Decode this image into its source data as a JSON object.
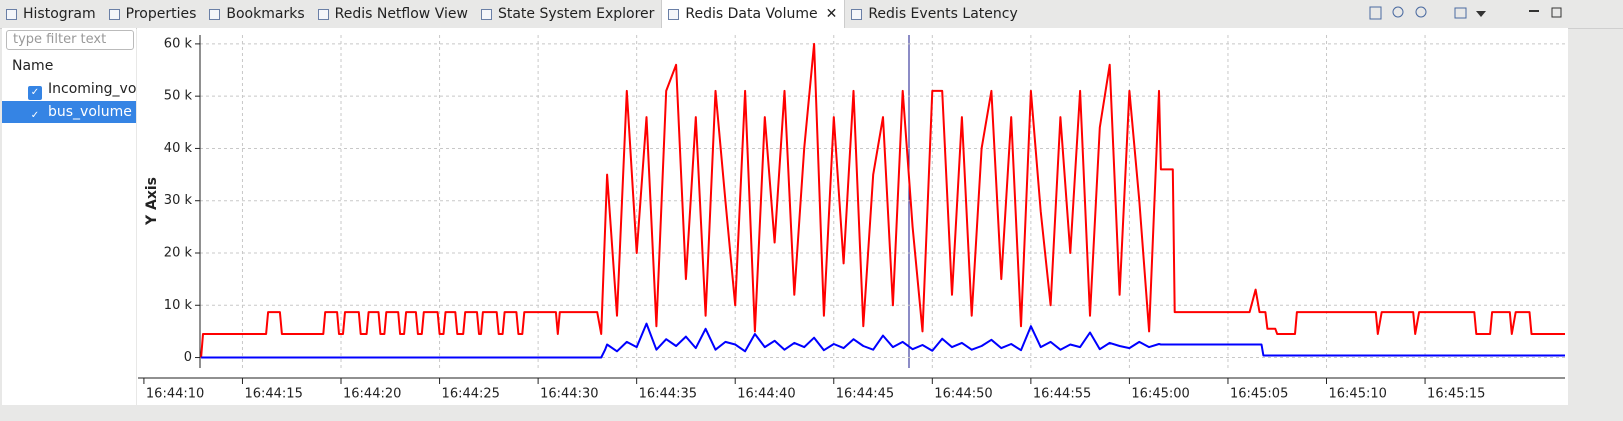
{
  "tabs": [
    {
      "label": "Histogram"
    },
    {
      "label": "Properties"
    },
    {
      "label": "Bookmarks"
    },
    {
      "label": "Redis Netflow View"
    },
    {
      "label": "State System Explorer"
    },
    {
      "label": "Redis Data Volume",
      "active": true
    },
    {
      "label": "Redis Events Latency"
    }
  ],
  "filter": {
    "placeholder": "type filter text"
  },
  "tree": {
    "header": "Name",
    "items": [
      {
        "label": "Incoming_volume",
        "checked": true
      },
      {
        "label": "bus_volume",
        "checked": true,
        "selected": true
      }
    ]
  },
  "chart_data": {
    "type": "line",
    "ylabel": "Y Axis",
    "grid": true,
    "xlim": [
      60249.7,
      60322.1
    ],
    "ylim": [
      -2000,
      61700
    ],
    "xticks": [
      {
        "value": 60250,
        "label": "16:44:10"
      },
      {
        "value": 60255,
        "label": "16:44:15"
      },
      {
        "value": 60260,
        "label": "16:44:20"
      },
      {
        "value": 60265,
        "label": "16:44:25"
      },
      {
        "value": 60270,
        "label": "16:44:30"
      },
      {
        "value": 60275,
        "label": "16:44:35"
      },
      {
        "value": 60280,
        "label": "16:44:40"
      },
      {
        "value": 60285,
        "label": "16:44:45"
      },
      {
        "value": 60290,
        "label": "16:44:50"
      },
      {
        "value": 60295,
        "label": "16:44:55"
      },
      {
        "value": 60300,
        "label": "16:45:00"
      },
      {
        "value": 60305,
        "label": "16:45:05"
      },
      {
        "value": 60310,
        "label": "16:45:10"
      },
      {
        "value": 60315,
        "label": "16:45:15"
      }
    ],
    "yticks": [
      0,
      {
        "value": 10000,
        "label": "10 k"
      },
      {
        "value": 20000,
        "label": "20 k"
      },
      {
        "value": 30000,
        "label": "30 k"
      },
      {
        "value": 40000,
        "label": "40 k"
      },
      {
        "value": 50000,
        "label": "50 k"
      },
      {
        "value": 60000,
        "label": "60 k"
      }
    ],
    "series": [
      {
        "name": "Incoming_volume",
        "color": "#ff0000",
        "x": [
          60252.9,
          60253.0,
          60256.2,
          60256.3,
          60256.9,
          60257.0,
          60259.1,
          60259.2,
          60259.8,
          60259.9,
          60260.1,
          60260.2,
          60260.9,
          60261.0,
          60261.3,
          60261.4,
          60261.9,
          60262.0,
          60262.2,
          60262.3,
          60262.9,
          60263.0,
          60263.2,
          60263.3,
          60263.8,
          60263.9,
          60264.1,
          60264.2,
          60264.9,
          60265.0,
          60265.2,
          60265.3,
          60265.8,
          60265.9,
          60266.2,
          60266.3,
          60266.9,
          60267.0,
          60267.1,
          60267.2,
          60267.9,
          60268.0,
          60268.2,
          60268.3,
          60268.9,
          60269.0,
          60269.2,
          60269.3,
          60270.9,
          60271.0,
          60271.1,
          60273.0,
          60273.2,
          60273.5,
          60274.0,
          60274.5,
          60275.0,
          60275.5,
          60276.0,
          60276.5,
          60277.0,
          60277.5,
          60278.0,
          60278.5,
          60279.0,
          60279.5,
          60280.0,
          60280.5,
          60281.0,
          60281.5,
          60282.0,
          60282.5,
          60283.0,
          60283.5,
          60284.0,
          60284.5,
          60285.0,
          60285.5,
          60286.0,
          60286.5,
          60287.0,
          60287.5,
          60288.0,
          60288.5,
          60289.0,
          60289.5,
          60290.0,
          60290.5,
          60291.0,
          60291.5,
          60292.0,
          60292.5,
          60293.0,
          60293.5,
          60294.0,
          60294.5,
          60295.0,
          60295.5,
          60296.0,
          60296.5,
          60297.0,
          60297.5,
          60298.0,
          60298.5,
          60299.0,
          60299.5,
          60300.0,
          60300.5,
          60301.0,
          60301.5,
          60301.6,
          60302.2,
          60302.3,
          60306.1,
          60306.4,
          60306.6,
          60306.9,
          60307.0,
          60307.4,
          60307.5,
          60308.4,
          60308.5,
          60312.5,
          60312.6,
          60312.8,
          60314.4,
          60314.5,
          60314.7,
          60317.5,
          60317.6,
          60318.3,
          60318.4,
          60319.3,
          60319.4,
          60319.6,
          60320.3,
          60320.4,
          60322.1
        ],
        "values": [
          0,
          4500,
          4500,
          8700,
          8700,
          4500,
          4500,
          8700,
          8700,
          4500,
          4500,
          8700,
          8700,
          4500,
          4500,
          8700,
          8700,
          4500,
          4500,
          8700,
          8700,
          4500,
          4500,
          8700,
          8700,
          4500,
          4500,
          8700,
          8700,
          4500,
          4500,
          8700,
          8700,
          4500,
          4500,
          8700,
          8700,
          4500,
          4500,
          8700,
          8700,
          4500,
          4500,
          8700,
          8700,
          4500,
          4500,
          8700,
          8700,
          4500,
          8700,
          8700,
          4500,
          35000,
          8000,
          51000,
          20000,
          46000,
          6000,
          51000,
          56000,
          15000,
          46000,
          8000,
          51000,
          30000,
          10000,
          51000,
          5000,
          46000,
          22000,
          51000,
          12000,
          40000,
          60000,
          8000,
          46000,
          18000,
          51000,
          6000,
          35000,
          46000,
          10000,
          51000,
          25000,
          5000,
          51000,
          51000,
          12000,
          46000,
          8000,
          40000,
          51000,
          15000,
          46000,
          6000,
          51000,
          28000,
          10000,
          46000,
          20000,
          51000,
          8000,
          44000,
          56000,
          12000,
          51000,
          30000,
          5000,
          51000,
          36000,
          36000,
          8700,
          8700,
          13000,
          8700,
          8700,
          5500,
          5500,
          4500,
          4500,
          8700,
          8700,
          4500,
          8700,
          8700,
          4500,
          8700,
          8700,
          4500,
          4500,
          8700,
          8700,
          4500,
          8700,
          8700,
          4500,
          4500
        ]
      },
      {
        "name": "bus_volume",
        "color": "#0000ff",
        "x": [
          60252.9,
          60273.2,
          60273.4,
          60273.5,
          60274.0,
          60274.5,
          60275.0,
          60275.5,
          60276.0,
          60276.5,
          60277.0,
          60277.5,
          60278.0,
          60278.5,
          60279.0,
          60279.5,
          60280.0,
          60280.5,
          60281.0,
          60281.5,
          60282.0,
          60282.5,
          60283.0,
          60283.5,
          60284.0,
          60284.5,
          60285.0,
          60285.5,
          60286.0,
          60286.5,
          60287.0,
          60287.5,
          60288.0,
          60288.5,
          60289.0,
          60289.5,
          60290.0,
          60290.5,
          60291.0,
          60291.5,
          60292.0,
          60292.5,
          60293.0,
          60293.5,
          60294.0,
          60294.5,
          60295.0,
          60295.5,
          60296.0,
          60296.5,
          60297.0,
          60297.5,
          60298.0,
          60298.5,
          60299.0,
          60299.5,
          60300.0,
          60300.5,
          60301.0,
          60301.5,
          60301.6,
          60306.7,
          60306.8,
          60322.1
        ],
        "values": [
          0,
          0,
          1500,
          2500,
          1200,
          3000,
          2000,
          6500,
          1500,
          3500,
          2200,
          4000,
          1800,
          5500,
          1500,
          3000,
          2500,
          1200,
          4500,
          2000,
          3200,
          1500,
          2800,
          2000,
          3800,
          1400,
          2600,
          1800,
          3500,
          2200,
          1500,
          4200,
          2000,
          3000,
          1600,
          2400,
          1300,
          3600,
          2000,
          2800,
          1500,
          2200,
          3400,
          1800,
          2600,
          1400,
          6000,
          2000,
          3000,
          1500,
          2500,
          2000,
          4800,
          1600,
          2800,
          2200,
          1800,
          3000,
          2000,
          2600,
          2500,
          2500,
          400,
          400
        ]
      }
    ]
  }
}
